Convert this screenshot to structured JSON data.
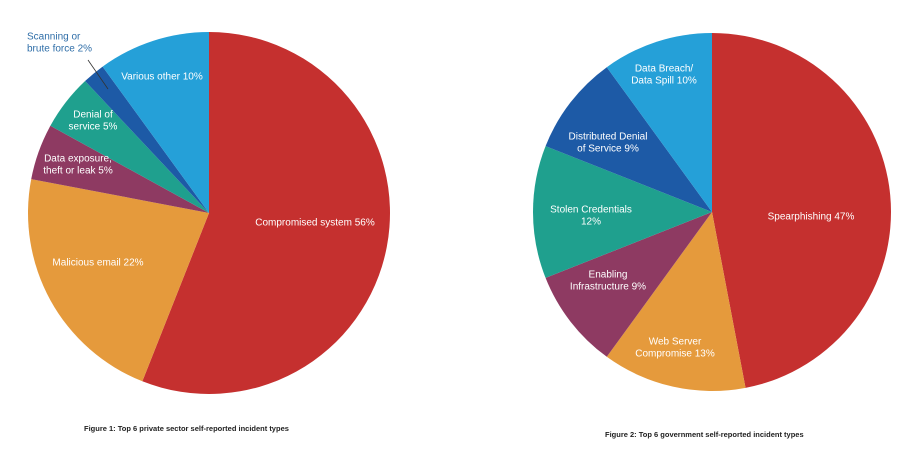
{
  "chart_data": [
    {
      "type": "pie",
      "caption": "Figure 1: Top 6 private sector self-reported incident types",
      "slices": [
        {
          "label": "Compromised system 56%",
          "value": 56,
          "color": "#c5302f"
        },
        {
          "label": "Malicious email 22%",
          "value": 22,
          "color": "#e59a3c"
        },
        {
          "label": "Data exposure,\ntheft or leak 5%",
          "value": 5,
          "color": "#8e3a62"
        },
        {
          "label": "Denial of\nservice 5%",
          "value": 5,
          "color": "#1fa08e"
        },
        {
          "label": "Scanning or\nbrute force 2%",
          "value": 2,
          "color": "#1d5aa6",
          "outside": true
        },
        {
          "label": "Various other 10%",
          "value": 10,
          "color": "#25a0d8"
        }
      ]
    },
    {
      "type": "pie",
      "caption": "Figure 2: Top 6 government self-reported incident types",
      "slices": [
        {
          "label": "Spearphishing 47%",
          "value": 47,
          "color": "#c5302f"
        },
        {
          "label": "Web Server\nCompromise 13%",
          "value": 13,
          "color": "#e59a3c"
        },
        {
          "label": "Enabling\nInfrastructure 9%",
          "value": 9,
          "color": "#8e3a62"
        },
        {
          "label": "Stolen Credentials\n12%",
          "value": 12,
          "color": "#1fa08e"
        },
        {
          "label": "Distributed Denial\nof Service 9%",
          "value": 9,
          "color": "#1d5aa6"
        },
        {
          "label": "Data Breach/\nData Spill 10%",
          "value": 10,
          "color": "#25a0d8"
        }
      ]
    }
  ]
}
